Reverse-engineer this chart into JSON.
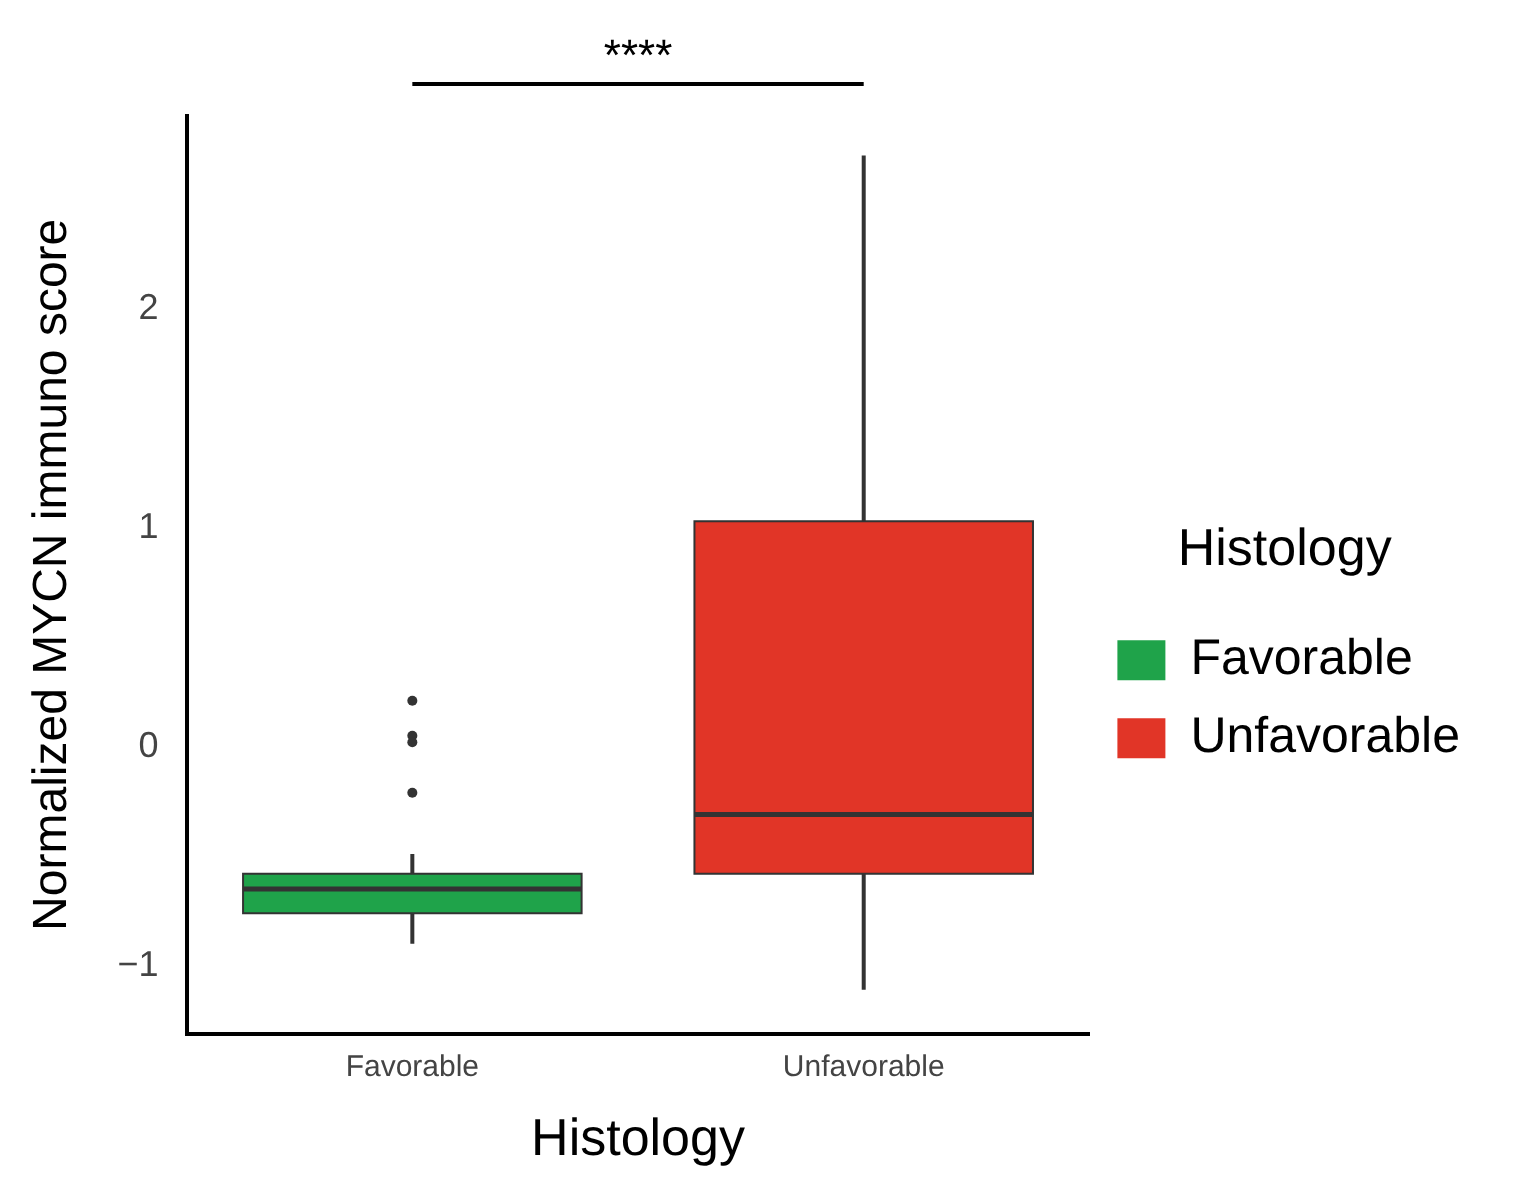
{
  "chart_data": {
    "type": "box",
    "xlabel": "Histology",
    "ylabel": "Normalized MYCN immuno score",
    "legend_title": "Histology",
    "legend": "right",
    "categories": [
      "Favorable",
      "Unfavorable"
    ],
    "series": [
      {
        "name": "Favorable",
        "color": "#1fa34a",
        "boxes": [
          {
            "low": -0.9,
            "q1": -0.76,
            "median": -0.65,
            "q3": -0.58,
            "high": -0.49,
            "outliers": [
              0.21,
              0.05,
              0.02,
              -0.21
            ]
          },
          null
        ]
      },
      {
        "name": "Unfavorable",
        "color": "#e13527",
        "boxes": [
          null,
          {
            "low": -1.11,
            "q1": -0.58,
            "median": -0.31,
            "q3": 1.03,
            "high": 2.7
          }
        ]
      }
    ],
    "ylim": [
      -1.31,
      2.88
    ],
    "yticks": [
      -1,
      0,
      1,
      2
    ],
    "grid": false,
    "annotations": [
      "****"
    ]
  }
}
